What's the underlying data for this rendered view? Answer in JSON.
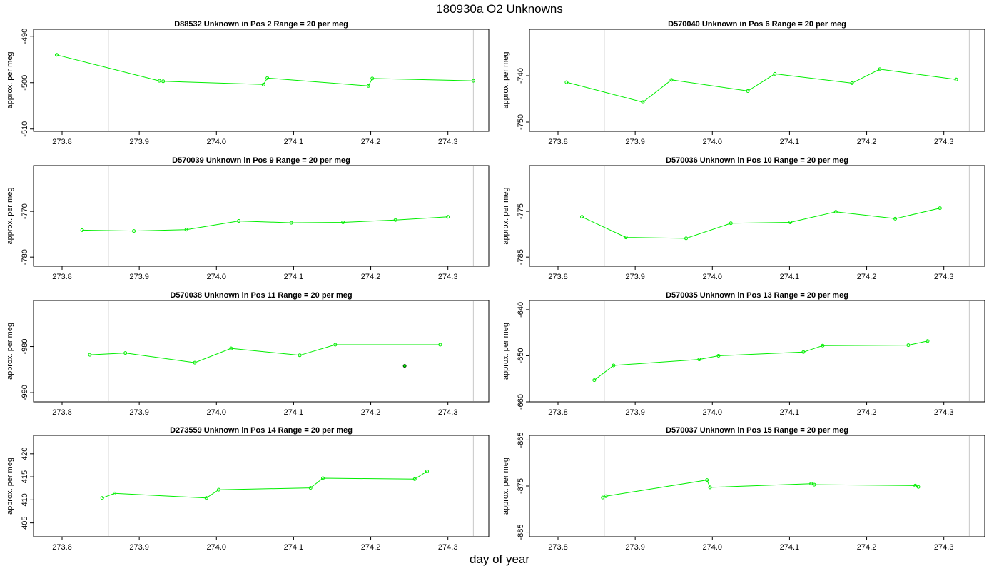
{
  "title": "180930a  O2 Unknowns",
  "xlabel": "day of year",
  "chart_data": [
    {
      "type": "line",
      "title": "D88532    Unknown in Pos 2          Range = 20 per meg",
      "ylabel": "approx. per meg",
      "xlim": [
        273.763,
        274.353
      ],
      "ylim": [
        -510.5,
        -488.5
      ],
      "xticks": [
        "273.8",
        "273.9",
        "274.0",
        "274.1",
        "274.2",
        "274.3"
      ],
      "yticks": [
        "-490",
        "-500",
        "-510"
      ],
      "vlines": [
        273.86,
        274.333
      ],
      "series": [
        {
          "x": [
            273.793,
            273.926,
            273.931,
            274.061,
            274.066,
            274.197,
            274.202,
            274.333
          ],
          "y": [
            -494.0,
            -499.6,
            -499.7,
            -500.4,
            -499.0,
            -500.7,
            -499.1,
            -499.6
          ]
        }
      ],
      "points": []
    },
    {
      "type": "line",
      "title": "D570040    Unknown in Pos 6          Range = 20 per meg",
      "ylabel": "approx. per meg",
      "xlim": [
        273.763,
        274.353
      ],
      "ylim": [
        -752,
        -730
      ],
      "xticks": [
        "273.8",
        "273.9",
        "274.0",
        "274.1",
        "274.2",
        "274.3"
      ],
      "yticks": [
        "-740",
        "-750"
      ],
      "vlines": [
        273.86,
        274.333
      ],
      "series": [
        {
          "x": [
            273.811,
            273.91,
            273.947,
            274.046,
            274.081,
            274.181,
            274.217,
            274.316
          ],
          "y": [
            -741.4,
            -745.7,
            -740.9,
            -743.3,
            -739.6,
            -741.6,
            -738.6,
            -740.8
          ]
        }
      ],
      "points": []
    },
    {
      "type": "line",
      "title": "D570039    Unknown in Pos 9          Range = 20 per meg",
      "ylabel": "approx. per meg",
      "xlim": [
        273.763,
        274.353
      ],
      "ylim": [
        -782,
        -760
      ],
      "xticks": [
        "273.8",
        "273.9",
        "274.0",
        "274.1",
        "274.2",
        "274.3"
      ],
      "yticks": [
        "-770",
        "-780"
      ],
      "vlines": [
        273.86,
        274.333
      ],
      "series": [
        {
          "x": [
            273.826,
            273.893,
            273.961,
            274.029,
            274.097,
            274.164,
            274.232,
            274.3
          ],
          "y": [
            -774.1,
            -774.3,
            -774.0,
            -772.1,
            -772.5,
            -772.4,
            -771.9,
            -771.2
          ]
        }
      ],
      "points": []
    },
    {
      "type": "line",
      "title": "D570036    Unknown in Pos 10          Range = 20 per meg",
      "ylabel": "approx. per meg",
      "xlim": [
        273.763,
        274.353
      ],
      "ylim": [
        -787,
        -765
      ],
      "xticks": [
        "273.8",
        "273.9",
        "274.0",
        "274.1",
        "274.2",
        "274.3"
      ],
      "yticks": [
        "-775",
        "-785"
      ],
      "vlines": [
        273.86,
        274.333
      ],
      "series": [
        {
          "x": [
            273.831,
            273.888,
            273.966,
            274.024,
            274.101,
            274.16,
            274.237,
            274.295
          ],
          "y": [
            -776.2,
            -780.7,
            -780.9,
            -777.6,
            -777.4,
            -775.1,
            -776.6,
            -774.3
          ]
        }
      ],
      "points": []
    },
    {
      "type": "line",
      "title": "D570038    Unknown in Pos 11          Range = 20 per meg",
      "ylabel": "approx. per meg",
      "xlim": [
        273.763,
        274.353
      ],
      "ylim": [
        -992,
        -970
      ],
      "xticks": [
        "273.8",
        "273.9",
        "274.0",
        "274.1",
        "274.2",
        "274.3"
      ],
      "yticks": [
        "-980",
        "-990"
      ],
      "vlines": [
        273.86,
        274.333
      ],
      "series": [
        {
          "x": [
            273.836,
            273.882,
            273.972,
            274.019,
            274.108,
            274.154,
            274.29
          ],
          "y": [
            -981.8,
            -981.4,
            -983.5,
            -980.4,
            -981.9,
            -979.6,
            -979.6
          ]
        }
      ],
      "points": [
        {
          "x": 274.244,
          "y": -984.2
        }
      ]
    },
    {
      "type": "line",
      "title": "D570035    Unknown in Pos 13          Range = 20 per meg",
      "ylabel": "approx. per meg",
      "xlim": [
        273.763,
        274.353
      ],
      "ylim": [
        -660,
        -638
      ],
      "xticks": [
        "273.8",
        "273.9",
        "274.0",
        "274.1",
        "274.2",
        "274.3"
      ],
      "yticks": [
        "-640",
        "-650",
        "-660"
      ],
      "vlines": [
        273.86,
        274.333
      ],
      "series": [
        {
          "x": [
            273.847,
            273.872,
            273.983,
            274.008,
            274.118,
            274.143,
            274.254,
            274.279
          ],
          "y": [
            -655.3,
            -652.1,
            -650.8,
            -650.0,
            -649.2,
            -647.8,
            -647.7,
            -646.8
          ]
        }
      ],
      "points": []
    },
    {
      "type": "line",
      "title": "D273559    Unknown in Pos 14          Range = 20 per meg",
      "ylabel": "approx. per meg",
      "xlim": [
        273.763,
        274.353
      ],
      "ylim": [
        402,
        424
      ],
      "xticks": [
        "273.8",
        "273.9",
        "274.0",
        "274.1",
        "274.2",
        "274.3"
      ],
      "yticks": [
        "405",
        "410",
        "415",
        "420"
      ],
      "vlines": [
        273.86,
        274.333
      ],
      "series": [
        {
          "x": [
            273.852,
            273.868,
            273.987,
            274.003,
            274.122,
            274.138,
            274.257,
            274.273
          ],
          "y": [
            410.4,
            411.4,
            410.4,
            412.2,
            412.6,
            414.7,
            414.5,
            416.2
          ]
        }
      ],
      "points": []
    },
    {
      "type": "line",
      "title": "D570037    Unknown in Pos 15          Range = 20 per meg",
      "ylabel": "approx. per meg",
      "xlim": [
        273.763,
        274.353
      ],
      "ylim": [
        -886,
        -864
      ],
      "xticks": [
        "273.8",
        "273.9",
        "274.0",
        "274.1",
        "274.2",
        "274.3"
      ],
      "yticks": [
        "-865",
        "-875",
        "-885"
      ],
      "vlines": [
        273.86,
        274.333
      ],
      "series": [
        {
          "x": [
            273.858,
            273.862,
            273.993,
            273.997,
            274.128,
            274.132,
            274.263,
            274.267
          ],
          "y": [
            -877.5,
            -877.2,
            -873.7,
            -875.3,
            -874.5,
            -874.7,
            -874.9,
            -875.2
          ]
        }
      ],
      "points": []
    }
  ]
}
